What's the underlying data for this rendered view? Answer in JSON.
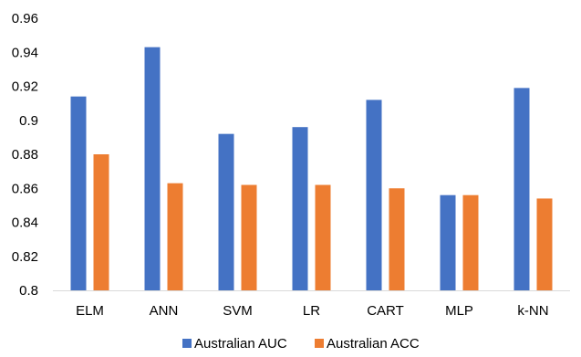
{
  "chart_data": {
    "type": "bar",
    "title": "",
    "xlabel": "",
    "ylabel": "",
    "categories": [
      "ELM",
      "ANN",
      "SVM",
      "LR",
      "CART",
      "MLP",
      "k-NN"
    ],
    "series": [
      {
        "name": "Australian AUC",
        "color": "#4472C4",
        "values": [
          0.914,
          0.943,
          0.892,
          0.896,
          0.912,
          0.856,
          0.919
        ]
      },
      {
        "name": "Australian ACC",
        "color": "#ED7D31",
        "values": [
          0.88,
          0.863,
          0.862,
          0.862,
          0.86,
          0.856,
          0.854
        ]
      }
    ],
    "ylim": [
      0.8,
      0.96
    ],
    "yticks": [
      "0.8",
      "0.82",
      "0.84",
      "0.86",
      "0.88",
      "0.9",
      "0.92",
      "0.94",
      "0.96"
    ],
    "grid": false,
    "legend_position": "bottom"
  }
}
